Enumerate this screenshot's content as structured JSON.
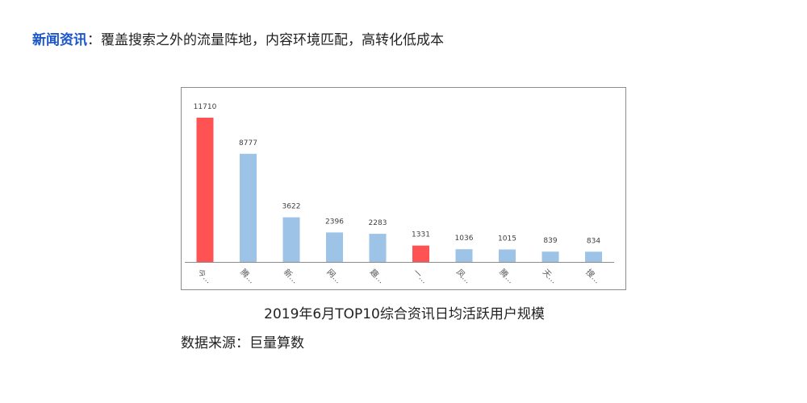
{
  "headline": {
    "key": "新闻资讯",
    "sep": "：",
    "text": "覆盖搜索之外的流量阵地，内容环境匹配，高转化低成本"
  },
  "caption": "2019年6月TOP10综合资讯日均活跃用户规模",
  "source": "数据来源：巨量算数",
  "colors": {
    "highlight": "#ff5252",
    "normal": "#9dc3e6",
    "headline_key": "#1a56c9"
  },
  "chart_data": {
    "type": "bar",
    "categories": [
      "今…",
      "腾…",
      "新…",
      "网…",
      "趣…",
      "一…",
      "凤…",
      "腾…",
      "天…",
      "搜…"
    ],
    "values": [
      11710,
      8777,
      3622,
      2396,
      2283,
      1331,
      1036,
      1015,
      839,
      834
    ],
    "highlight": [
      true,
      false,
      false,
      false,
      false,
      true,
      false,
      false,
      false,
      false
    ],
    "title": "",
    "xlabel": "",
    "ylabel": "",
    "ylim": [
      0,
      11710
    ],
    "grid": false,
    "legend": "none"
  }
}
